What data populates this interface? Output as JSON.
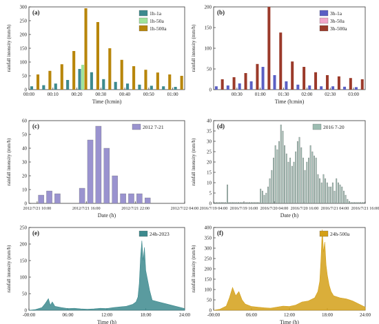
{
  "chart_data": [
    {
      "panel": "(a)",
      "type": "bar",
      "xlabel": "Time (h:min)",
      "ylabel": "rainfall intensity (mm/h)",
      "ylim": [
        0,
        300
      ],
      "yticks": [
        0,
        50,
        100,
        150,
        200,
        250,
        300
      ],
      "xlim": [
        0,
        65
      ],
      "xtick_values": [
        0,
        10,
        20,
        30,
        40,
        50,
        60
      ],
      "xtick_labels": [
        "00:00",
        "00:10",
        "00:20",
        "00:30",
        "00:40",
        "00:50",
        "01:00"
      ],
      "legend_position": "top-right",
      "x": [
        2.5,
        7.5,
        12.5,
        17.5,
        22.5,
        27.5,
        32.5,
        37.5,
        42.5,
        47.5,
        52.5,
        57.5,
        62.5
      ],
      "series": [
        {
          "name": "1h-1a",
          "color": "#3d8a8e",
          "values": [
            12,
            16,
            22,
            35,
            75,
            63,
            38,
            28,
            22,
            18,
            14,
            12,
            10
          ]
        },
        {
          "name": "1h-50a",
          "color": "#9fe39b",
          "values": [
            0,
            0,
            0,
            0,
            90,
            0,
            0,
            0,
            0,
            0,
            0,
            0,
            0
          ]
        },
        {
          "name": "1h-500a",
          "color": "#b8860b",
          "values": [
            55,
            68,
            92,
            140,
            295,
            245,
            150,
            108,
            85,
            72,
            62,
            55,
            50
          ]
        }
      ]
    },
    {
      "panel": "(b)",
      "type": "bar",
      "xlabel": "Time (h:min)",
      "ylabel": "rainfall intensity (mm/h)",
      "ylim": [
        0,
        200
      ],
      "yticks": [
        0,
        50,
        100,
        150,
        200
      ],
      "xlim": [
        0,
        195
      ],
      "xtick_values": [
        30,
        60,
        90,
        120,
        150,
        180
      ],
      "xtick_labels": [
        "00:30",
        "01:00",
        "01:30",
        "02:00",
        "02:30",
        "03:00"
      ],
      "legend_position": "top-right",
      "x": [
        7.5,
        22.5,
        37.5,
        52.5,
        67.5,
        82.5,
        97.5,
        112.5,
        127.5,
        142.5,
        157.5,
        172.5,
        187.5
      ],
      "series": [
        {
          "name": "3h-1a",
          "color": "#5a5fc4",
          "values": [
            8,
            10,
            15,
            20,
            55,
            35,
            20,
            12,
            10,
            8,
            8,
            7,
            6
          ]
        },
        {
          "name": "3h-50a",
          "color": "#f2a6c8",
          "values": [
            0,
            0,
            0,
            0,
            0,
            0,
            0,
            0,
            0,
            0,
            0,
            0,
            0
          ]
        },
        {
          "name": "3h-500a",
          "color": "#9b3a2a",
          "values": [
            25,
            30,
            40,
            62,
            205,
            138,
            68,
            55,
            42,
            35,
            32,
            28,
            25
          ]
        }
      ]
    },
    {
      "panel": "(c)",
      "type": "bar",
      "xlabel": "Date (h)",
      "ylabel": "rainfall intensity (mm/h)",
      "ylim": [
        0,
        60
      ],
      "yticks": [
        0,
        10,
        20,
        30,
        40,
        50,
        60
      ],
      "xlim": [
        9,
        28
      ],
      "xtick_values": [
        10,
        16,
        22,
        28
      ],
      "xtick_labels": [
        "2012/7/21 10:00",
        "2012/7/21 16:00",
        "2012/7/21 22:00",
        "2012/7/22 04:00"
      ],
      "legend_position": "top-right",
      "x": [
        10.5,
        11.5,
        12.5,
        13.5,
        14.5,
        15.5,
        16.5,
        17.5,
        18.5,
        19.5,
        20.5,
        21.5,
        22.5,
        23.5,
        24.5,
        25.5,
        26.5,
        27.5
      ],
      "series": [
        {
          "name": "2012 7-21",
          "color": "#9a93cf",
          "values": [
            6,
            9,
            7,
            0,
            0,
            11,
            46,
            56,
            40,
            20,
            7,
            7,
            7,
            4,
            0,
            0,
            0,
            0
          ]
        }
      ]
    },
    {
      "panel": "(d)",
      "type": "bar",
      "xlabel": "Date (h)",
      "ylabel": "rainfall intensity (mm/h)",
      "ylim": [
        0,
        40
      ],
      "yticks": [
        0,
        5,
        10,
        15,
        20,
        25,
        30,
        35,
        40
      ],
      "xlim": [
        0,
        60
      ],
      "xtick_values": [
        0,
        12,
        24,
        36,
        48,
        60
      ],
      "xtick_labels": [
        "2016/7/19 04:00",
        "2016/7/19 16:00",
        "2016/7/20 04:00",
        "2016/7/20 16:00",
        "2016/7/21 04:00",
        "2016/7/21 16:00"
      ],
      "legend_position": "top-right",
      "series": [
        {
          "name": "2016 7-20",
          "color": "#9cbcb1",
          "values": [
            0.5,
            0.5,
            0.5,
            0.5,
            0.5,
            0.5,
            0.5,
            9,
            0.5,
            0.5,
            0.5,
            0.5,
            0.5,
            0.5,
            0.5,
            0.5,
            0.5,
            0.5,
            0.5,
            0.5,
            0.5,
            0.5,
            0.5,
            0.5,
            0.5,
            7,
            6,
            4,
            5,
            8,
            12,
            16,
            22,
            28,
            26,
            30,
            38,
            35,
            28,
            24,
            20,
            22,
            18,
            20,
            25,
            30,
            32,
            27,
            22,
            16,
            20,
            22,
            28,
            25,
            23,
            22,
            14,
            12,
            10,
            14,
            12,
            10,
            8,
            8,
            10,
            6,
            12,
            10,
            9,
            8,
            6,
            4,
            2,
            1,
            0.5,
            0.5,
            0.5,
            0.5,
            0.5,
            0.5,
            0.5,
            0.5
          ]
        }
      ]
    },
    {
      "panel": "(e)",
      "type": "area",
      "xlabel": "Time (h)",
      "ylabel": "rainfall intensity (mm/h)",
      "ylim": [
        0,
        250
      ],
      "yticks": [
        0,
        50,
        100,
        150,
        200,
        250
      ],
      "xlim": [
        0,
        24
      ],
      "xtick_values": [
        0,
        6,
        12,
        18,
        24
      ],
      "xtick_labels": [
        "-00:00",
        "06:00",
        "12:00",
        "18:00",
        "24:00"
      ],
      "legend_position": "top-right",
      "series": [
        {
          "name": "24h-2023",
          "color": "#3d8a8e",
          "x": [
            0,
            1,
            2,
            2.5,
            3,
            3.3,
            3.6,
            4,
            5,
            6,
            7,
            8,
            9,
            10,
            11,
            12,
            13,
            14,
            15,
            16,
            16.5,
            16.8,
            17,
            17.2,
            17.4,
            17.6,
            17.8,
            18,
            18.3,
            18.6,
            19,
            20,
            21,
            22,
            23,
            24
          ],
          "values": [
            0,
            2,
            8,
            20,
            35,
            15,
            25,
            12,
            8,
            5,
            6,
            4,
            3,
            4,
            6,
            5,
            8,
            10,
            12,
            18,
            25,
            40,
            80,
            160,
            210,
            150,
            190,
            120,
            90,
            60,
            30,
            25,
            20,
            15,
            10,
            5
          ]
        }
      ]
    },
    {
      "panel": "(f)",
      "type": "area",
      "xlabel": "Time (h)",
      "ylabel": "rainfall intensity (mm/h)",
      "ylim": [
        0,
        400
      ],
      "yticks": [
        0,
        50,
        100,
        150,
        200,
        250,
        300,
        350,
        400
      ],
      "xlim": [
        0,
        24
      ],
      "xtick_values": [
        0,
        6,
        12,
        18,
        24
      ],
      "xtick_labels": [
        "-00:00",
        "06:00",
        "12:00",
        "18:00",
        "24:00"
      ],
      "legend_position": "top-right",
      "series": [
        {
          "name": "24h-500a",
          "color": "#d4a017",
          "x": [
            0,
            1,
            2,
            2.5,
            3,
            3.5,
            4,
            4.5,
            5,
            6,
            7,
            8,
            9,
            10,
            11,
            12,
            13,
            14,
            15,
            16,
            16.5,
            16.8,
            17,
            17.2,
            17.4,
            17.6,
            17.8,
            18,
            18.3,
            18.6,
            19,
            20,
            21,
            22,
            23,
            24
          ],
          "values": [
            0,
            5,
            20,
            60,
            110,
            70,
            90,
            50,
            30,
            18,
            15,
            12,
            10,
            15,
            20,
            18,
            25,
            40,
            45,
            60,
            90,
            140,
            250,
            390,
            280,
            330,
            220,
            170,
            120,
            90,
            70,
            60,
            55,
            45,
            30,
            15
          ]
        }
      ]
    }
  ]
}
